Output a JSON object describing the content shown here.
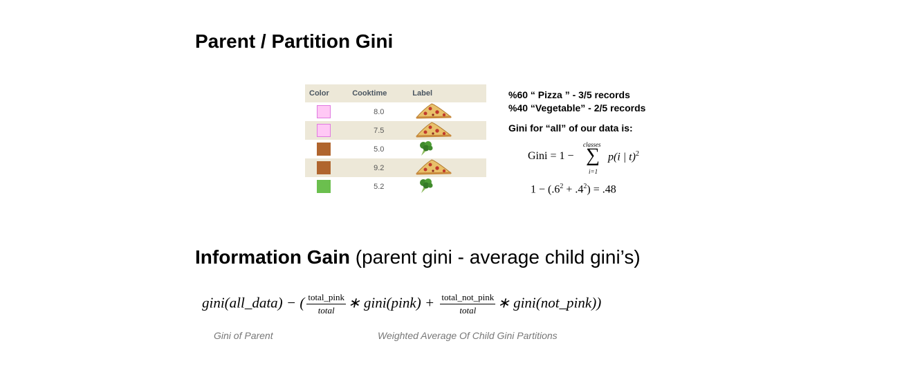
{
  "title": "Parent / Partition Gini",
  "table": {
    "headers": [
      "Color",
      "Cooktime",
      "Label"
    ],
    "rows": [
      {
        "color": "#ffc8f5",
        "cooktime": "8.0",
        "label": "pizza-icon"
      },
      {
        "color": "#ffc8f5",
        "cooktime": "7.5",
        "label": "pizza-icon"
      },
      {
        "color": "#b0652e",
        "cooktime": "5.0",
        "label": "broccoli-icon"
      },
      {
        "color": "#b0652e",
        "cooktime": "9.2",
        "label": "pizza-icon"
      },
      {
        "color": "#6bbf4e",
        "cooktime": "5.2",
        "label": "broccoli-icon"
      }
    ]
  },
  "facts": {
    "line1": "%60 “ Pizza ” - 3/5 records",
    "line2": "%40  “Vegetable” - 2/5 records",
    "line3": "Gini for “all” of our data is:"
  },
  "gini_formula": {
    "lhs": "Gini = 1 −",
    "sum_top": "classes",
    "sum_bottom": "i=1",
    "term": "p(i | t)",
    "exp": "2",
    "calc_a": "1 − (.6",
    "calc_b": " + .4",
    "calc_c": ") = .48"
  },
  "info_gain": {
    "title_bold": "Information Gain",
    "title_rest": " (parent gini - average child gini’s)",
    "f_start": "gini(all_data) − (",
    "frac1_num": "total_pink",
    "frac1_den": "total",
    "f_mid": "∗ gini(pink) +",
    "frac2_num": "total_not_pink",
    "frac2_den": "total",
    "f_end": "∗ gini(not_pink))",
    "caption_parent": "Gini of Parent",
    "caption_children": "Weighted Average Of Child Gini Partitions"
  }
}
